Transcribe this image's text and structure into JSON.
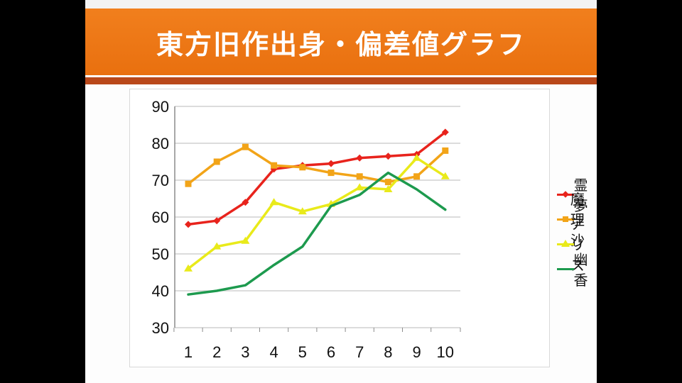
{
  "title": "東方旧作出身・偏差値グラフ",
  "colors": {
    "title_bg": "#ee7616",
    "under_bar": "#b9481a"
  },
  "chart_data": {
    "type": "line",
    "title": "",
    "xlabel": "",
    "ylabel": "",
    "categories": [
      1,
      2,
      3,
      4,
      5,
      6,
      7,
      8,
      9,
      10
    ],
    "ylim": [
      30,
      90
    ],
    "yticks": [
      30,
      40,
      50,
      60,
      70,
      80,
      90
    ],
    "grid": true,
    "legend": "right",
    "series": [
      {
        "name": "霊夢",
        "color": "#e8231c",
        "marker": "diamond",
        "values": [
          58,
          59,
          64,
          73,
          74,
          74.5,
          76,
          76.5,
          77,
          83
        ]
      },
      {
        "name": "魔理沙",
        "color": "#f2a418",
        "marker": "square",
        "values": [
          69,
          75,
          79,
          74,
          73.5,
          72,
          71,
          69.5,
          71,
          78
        ]
      },
      {
        "name": "アリス",
        "color": "#e9ea1a",
        "marker": "triangle",
        "values": [
          46,
          52,
          53.5,
          64,
          61.5,
          63.5,
          68,
          67.5,
          76,
          71
        ]
      },
      {
        "name": "幽香",
        "color": "#1d9a4e",
        "marker": "none",
        "values": [
          39,
          40,
          41.5,
          47,
          52,
          63,
          66,
          72,
          67.5,
          62
        ]
      }
    ]
  }
}
